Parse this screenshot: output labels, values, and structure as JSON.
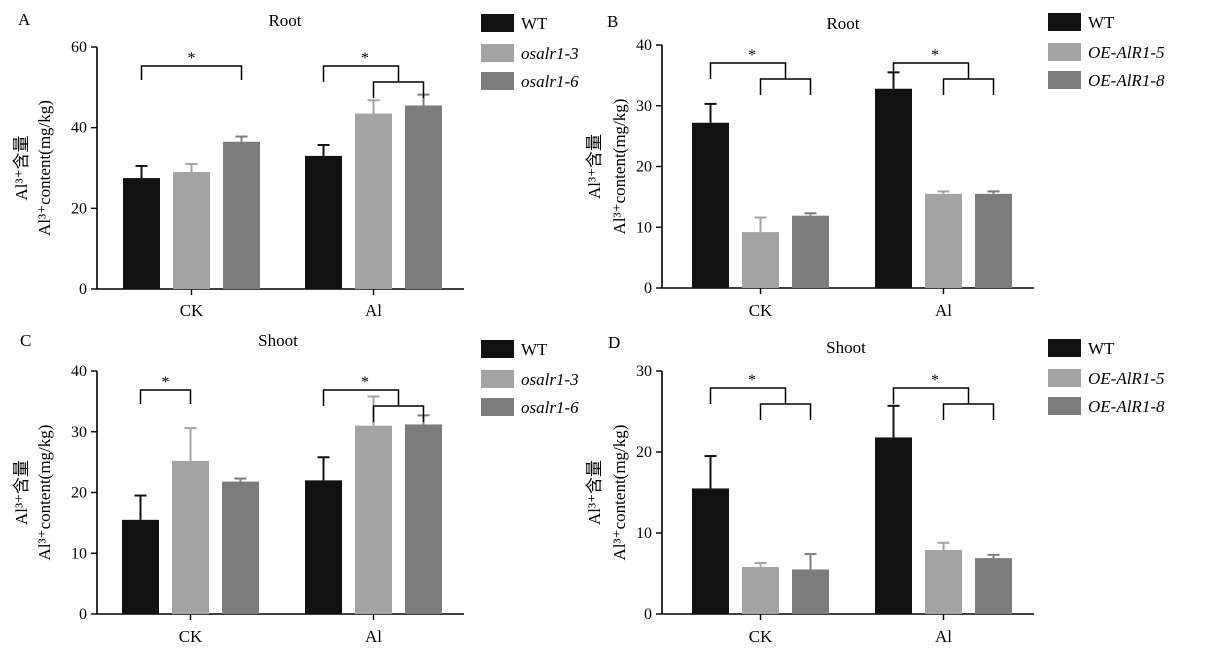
{
  "chart_data": [
    {
      "type": "bar",
      "panel": "A",
      "title": "Root",
      "ylabel_line1": "Al³⁺含量",
      "ylabel_line2": "Al³⁺content(mg/kg)",
      "ylim": [
        0,
        60
      ],
      "yticks": [
        "0",
        "20",
        "40",
        "60"
      ],
      "categories": [
        "CK",
        "Al"
      ],
      "series": [
        {
          "name": "WT",
          "italic": false,
          "values": [
            27.5,
            33
          ],
          "errors": [
            3,
            2.7
          ],
          "color": "#111111"
        },
        {
          "name": "osalr1-3",
          "italic": true,
          "values": [
            29,
            43.5
          ],
          "errors": [
            2,
            3.3
          ],
          "color": "#a3a3a3"
        },
        {
          "name": "osalr1-6",
          "italic": true,
          "values": [
            36.5,
            45.5
          ],
          "errors": [
            1.3,
            2.7
          ],
          "color": "#7c7c7c"
        }
      ],
      "significance": [
        {
          "category": "CK",
          "style": "pair",
          "label": "*",
          "pair": [
            0,
            2
          ]
        },
        {
          "category": "Al",
          "style": "bracket",
          "label": "*"
        }
      ]
    },
    {
      "type": "bar",
      "panel": "B",
      "title": "Root",
      "ylabel_line1": "Al³⁺含量",
      "ylabel_line2": "Al³⁺content(mg/kg)",
      "ylim": [
        0,
        40
      ],
      "yticks": [
        "0",
        "10",
        "20",
        "30",
        "40"
      ],
      "categories": [
        "CK",
        "Al"
      ],
      "series": [
        {
          "name": "WT",
          "italic": false,
          "values": [
            27.2,
            32.8
          ],
          "errors": [
            3.1,
            2.7
          ],
          "color": "#111111"
        },
        {
          "name": "OE-AlR1-5",
          "italic": true,
          "values": [
            9.2,
            15.5
          ],
          "errors": [
            2.4,
            0.4
          ],
          "color": "#a3a3a3"
        },
        {
          "name": "OE-AlR1-8",
          "italic": true,
          "values": [
            11.9,
            15.5
          ],
          "errors": [
            0.4,
            0.4
          ],
          "color": "#7c7c7c"
        }
      ],
      "significance": [
        {
          "category": "CK",
          "style": "bracket",
          "label": "*"
        },
        {
          "category": "Al",
          "style": "bracket",
          "label": "*"
        }
      ]
    },
    {
      "type": "bar",
      "panel": "C",
      "title": "Shoot",
      "ylabel_line1": "Al³⁺含量",
      "ylabel_line2": "Al³⁺content(mg/kg)",
      "ylim": [
        0,
        40
      ],
      "yticks": [
        "0",
        "10",
        "20",
        "30",
        "40"
      ],
      "categories": [
        "CK",
        "Al"
      ],
      "series": [
        {
          "name": "WT",
          "italic": false,
          "values": [
            15.5,
            22
          ],
          "errors": [
            4,
            3.8
          ],
          "color": "#111111"
        },
        {
          "name": "osalr1-3",
          "italic": true,
          "values": [
            25.2,
            31
          ],
          "errors": [
            5.4,
            4.8
          ],
          "color": "#a3a3a3"
        },
        {
          "name": "osalr1-6",
          "italic": true,
          "values": [
            21.8,
            31.2
          ],
          "errors": [
            0.5,
            1.5
          ],
          "color": "#7c7c7c"
        }
      ],
      "significance": [
        {
          "category": "CK",
          "style": "pair",
          "label": "*",
          "pair": [
            0,
            1
          ]
        },
        {
          "category": "Al",
          "style": "bracket",
          "label": "*"
        }
      ]
    },
    {
      "type": "bar",
      "panel": "D",
      "title": "Shoot",
      "ylabel_line1": "Al³⁺含量",
      "ylabel_line2": "Al³⁺content(mg/kg)",
      "ylim": [
        0,
        30
      ],
      "yticks": [
        "0",
        "10",
        "20",
        "30"
      ],
      "categories": [
        "CK",
        "Al"
      ],
      "series": [
        {
          "name": "WT",
          "italic": false,
          "values": [
            15.5,
            21.8
          ],
          "errors": [
            4,
            3.9
          ],
          "color": "#111111"
        },
        {
          "name": "OE-AlR1-5",
          "italic": true,
          "values": [
            5.8,
            7.9
          ],
          "errors": [
            0.5,
            0.9
          ],
          "color": "#a3a3a3"
        },
        {
          "name": "OE-AlR1-8",
          "italic": true,
          "values": [
            5.5,
            6.9
          ],
          "errors": [
            1.9,
            0.4
          ],
          "color": "#7c7c7c"
        }
      ],
      "significance": [
        {
          "category": "CK",
          "style": "bracket",
          "label": "*"
        },
        {
          "category": "Al",
          "style": "bracket",
          "label": "*"
        }
      ]
    }
  ]
}
